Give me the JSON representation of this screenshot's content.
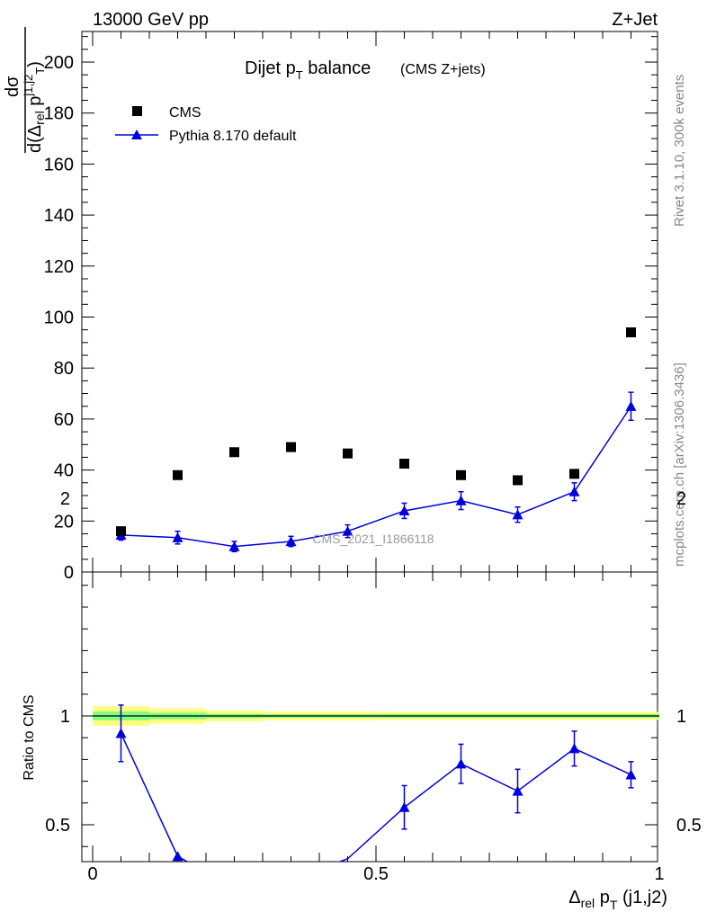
{
  "header": {
    "left": "13000 GeV pp",
    "right": "Z+Jet"
  },
  "side_labels": {
    "rivet": "Rivet 3.1.10,  300k events",
    "mcplots": "mcplots.cern.ch [arXiv:1306.3436]"
  },
  "plot_title": {
    "main_prefix": "Dijet p",
    "main_sub": "T",
    "main_suffix": " balance",
    "sub": "(CMS Z+jets)"
  },
  "watermark": "CMS_2021_I1866118",
  "legend": {
    "data_label": "CMS",
    "mc_label": "Pythia 8.170 default"
  },
  "colors": {
    "data": "#000000",
    "mc": "#0000dd",
    "band_outer": "#ffff80",
    "band_inner": "#80ff80",
    "ref_line": "#000000"
  },
  "chart_data": [
    {
      "type": "scatter",
      "name": "main",
      "ylabel": "dσ / d(Δrel pT j1,j2)",
      "xlim": [
        0,
        1
      ],
      "ylim": [
        0,
        212
      ],
      "y_ticks": [
        0,
        20,
        40,
        60,
        80,
        100,
        120,
        140,
        160,
        180,
        200
      ],
      "x": [
        0.05,
        0.15,
        0.25,
        0.35,
        0.45,
        0.55,
        0.65,
        0.75,
        0.85,
        0.95
      ],
      "series": [
        {
          "name": "CMS",
          "values": [
            16,
            38,
            47,
            49,
            46.5,
            42.5,
            38,
            36,
            38.5,
            94
          ]
        },
        {
          "name": "Pythia 8.170 default",
          "values": [
            14.5,
            13.5,
            10,
            12,
            16,
            24,
            28,
            22.5,
            31.5,
            65
          ],
          "errors": [
            2,
            2.5,
            2,
            2,
            2.5,
            3,
            3.5,
            3,
            3.5,
            5.5
          ]
        }
      ]
    },
    {
      "type": "line",
      "name": "ratio",
      "ylabel": "Ratio to CMS",
      "xlabel": "Δrel pT (j1,j2)",
      "xlim": [
        0,
        1
      ],
      "ylim": [
        0.35,
        2.25
      ],
      "x_ticks": [
        0,
        0.5,
        1
      ],
      "y_ticks": [
        0.5,
        1,
        2
      ],
      "x": [
        0.05,
        0.15,
        0.25,
        0.35,
        0.45,
        0.55,
        0.65,
        0.75,
        0.85,
        0.95
      ],
      "series": [
        {
          "name": "Pythia 8.170 default",
          "values": [
            0.92,
            0.355,
            0.21,
            0.245,
            0.344,
            0.58,
            0.78,
            0.655,
            0.85,
            0.73
          ],
          "errors": [
            0.13,
            0,
            0,
            0,
            0,
            0.1,
            0.09,
            0.1,
            0.08,
            0.06
          ]
        }
      ],
      "band_inner": [
        0.02,
        0.015,
        0.01,
        0.008,
        0.008,
        0.008,
        0.008,
        0.008,
        0.008,
        0.008
      ],
      "band_outer": [
        0.045,
        0.035,
        0.025,
        0.02,
        0.02,
        0.018,
        0.018,
        0.018,
        0.018,
        0.018
      ]
    }
  ]
}
